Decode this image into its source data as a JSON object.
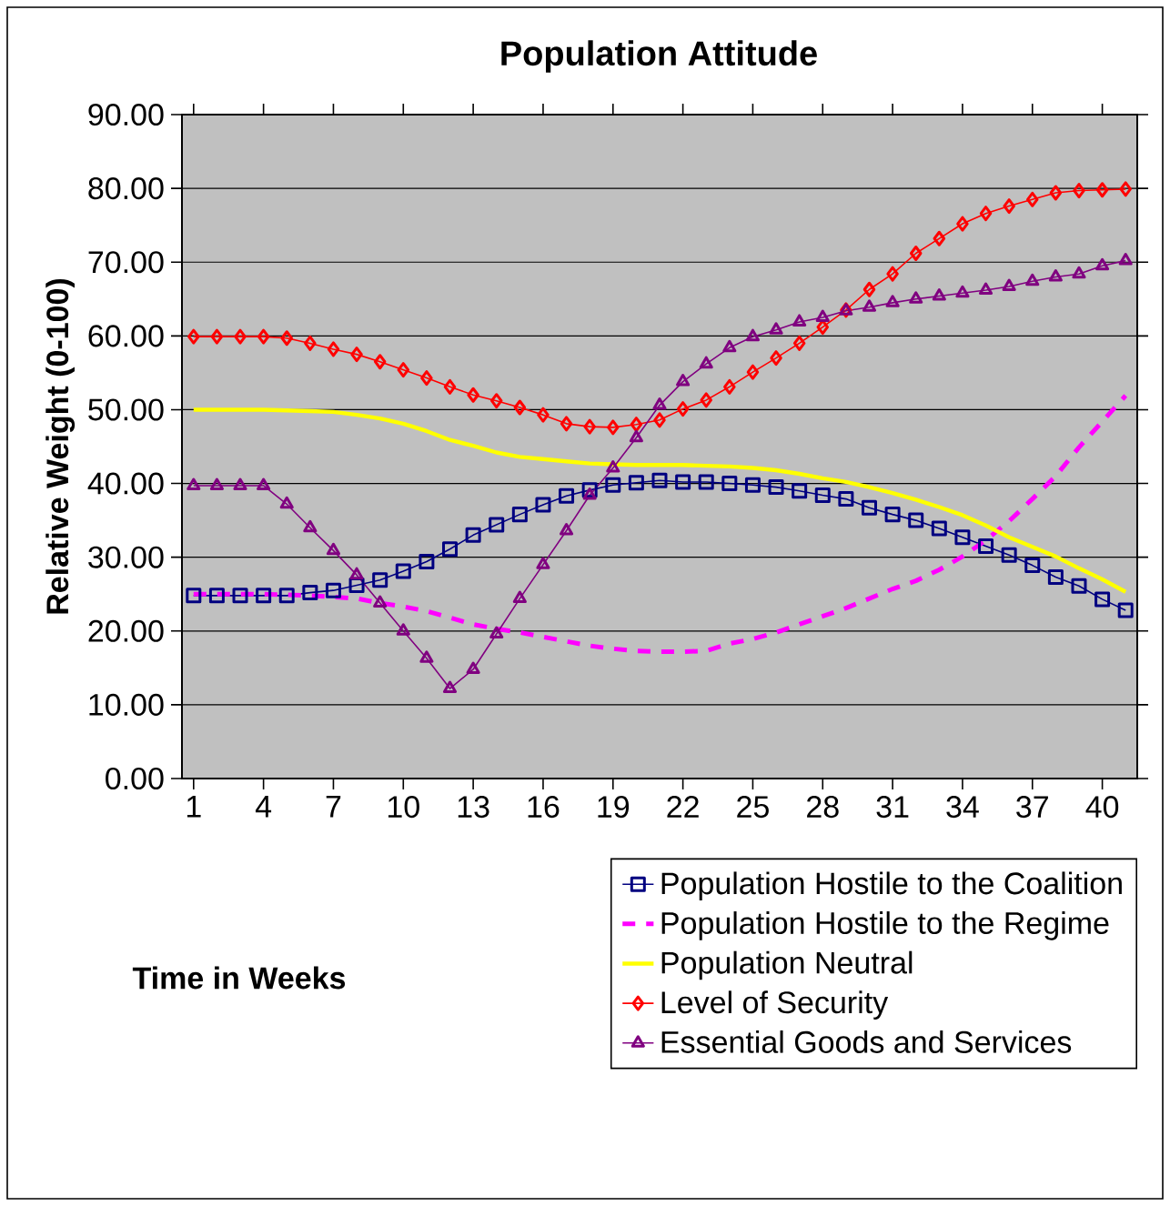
{
  "chart_data": {
    "type": "line",
    "title": "Population Attitude",
    "xlabel": "Time in Weeks",
    "ylabel": "Relative Weight (0-100)",
    "x": [
      1,
      2,
      3,
      4,
      5,
      6,
      7,
      8,
      9,
      10,
      11,
      12,
      13,
      14,
      15,
      16,
      17,
      18,
      19,
      20,
      21,
      22,
      23,
      24,
      25,
      26,
      27,
      28,
      29,
      30,
      31,
      32,
      33,
      34,
      35,
      36,
      37,
      38,
      39,
      40,
      41
    ],
    "xlim": [
      0.5,
      41.5
    ],
    "xticks": [
      1,
      4,
      7,
      10,
      13,
      16,
      19,
      22,
      25,
      28,
      31,
      34,
      37,
      40
    ],
    "ylim": [
      0,
      90
    ],
    "yticks": [
      {
        "value": 0,
        "label": "0.00"
      },
      {
        "value": 10,
        "label": "10.00"
      },
      {
        "value": 20,
        "label": "20.00"
      },
      {
        "value": 30,
        "label": "30.00"
      },
      {
        "value": 40,
        "label": "40.00"
      },
      {
        "value": 50,
        "label": "50.00"
      },
      {
        "value": 60,
        "label": "60.00"
      },
      {
        "value": 70,
        "label": "70.00"
      },
      {
        "value": 80,
        "label": "80.00"
      },
      {
        "value": 90,
        "label": "90.00"
      }
    ],
    "grid": "y",
    "legend": "bottom right",
    "series": [
      {
        "name": "Population Hostile to the Coalition",
        "color": "#000080",
        "marker": "square",
        "line_style": "solid",
        "values": [
          24.8,
          24.8,
          24.8,
          24.8,
          24.8,
          25.2,
          25.5,
          26.2,
          26.9,
          28.1,
          29.4,
          31.1,
          33.0,
          34.4,
          35.8,
          37.1,
          38.3,
          39.1,
          39.8,
          40.1,
          40.4,
          40.2,
          40.2,
          40.0,
          39.8,
          39.5,
          39.0,
          38.4,
          37.9,
          36.7,
          35.8,
          35.0,
          33.9,
          32.7,
          31.5,
          30.3,
          28.9,
          27.3,
          26.1,
          24.3,
          22.8
        ]
      },
      {
        "name": "Population Hostile to the Regime",
        "color": "#ff00ff",
        "marker": "none",
        "line_style": "dashed",
        "values": [
          25.0,
          25.0,
          25.0,
          25.0,
          24.9,
          24.8,
          24.6,
          24.4,
          23.8,
          23.3,
          22.7,
          21.8,
          20.9,
          20.3,
          19.8,
          19.2,
          18.6,
          18.0,
          17.6,
          17.3,
          17.2,
          17.2,
          17.3,
          18.3,
          18.9,
          19.8,
          20.9,
          22.0,
          23.1,
          24.4,
          25.7,
          26.8,
          28.3,
          30.1,
          32.3,
          34.9,
          37.9,
          41.0,
          44.9,
          48.4,
          51.9
        ]
      },
      {
        "name": "Population Neutral",
        "color": "#ffff00",
        "marker": "none",
        "line_style": "solid",
        "values": [
          50.0,
          50.0,
          50.0,
          50.0,
          49.9,
          49.8,
          49.7,
          49.3,
          48.8,
          48.1,
          47.1,
          45.9,
          45.1,
          44.2,
          43.6,
          43.3,
          43.0,
          42.7,
          42.6,
          42.5,
          42.5,
          42.5,
          42.4,
          42.3,
          42.1,
          41.8,
          41.3,
          40.7,
          40.2,
          39.5,
          38.7,
          37.8,
          36.8,
          35.7,
          34.3,
          32.7,
          31.4,
          30.1,
          28.5,
          27.0,
          25.3
        ]
      },
      {
        "name": "Level of Security",
        "color": "#ff0000",
        "marker": "diamond",
        "line_style": "solid",
        "values": [
          59.9,
          59.9,
          59.9,
          59.9,
          59.7,
          59.0,
          58.2,
          57.5,
          56.5,
          55.4,
          54.3,
          53.1,
          52.0,
          51.2,
          50.3,
          49.3,
          48.1,
          47.7,
          47.6,
          48.0,
          48.6,
          50.1,
          51.3,
          53.1,
          55.1,
          57.0,
          59.0,
          61.2,
          63.5,
          66.3,
          68.4,
          71.2,
          73.2,
          75.2,
          76.6,
          77.6,
          78.5,
          79.4,
          79.7,
          79.8,
          79.9
        ]
      },
      {
        "name": "Essential Goods and Services",
        "color": "#800080",
        "marker": "triangle",
        "line_style": "solid",
        "values": [
          39.7,
          39.7,
          39.7,
          39.7,
          37.2,
          34.0,
          30.9,
          27.6,
          23.8,
          20.0,
          16.3,
          12.2,
          14.8,
          19.6,
          24.4,
          29.0,
          33.6,
          38.4,
          42.1,
          46.2,
          50.6,
          53.8,
          56.2,
          58.4,
          59.9,
          60.8,
          61.9,
          62.5,
          63.4,
          63.9,
          64.5,
          65.0,
          65.4,
          65.8,
          66.2,
          66.7,
          67.4,
          68.0,
          68.4,
          69.5,
          70.2
        ]
      }
    ]
  }
}
